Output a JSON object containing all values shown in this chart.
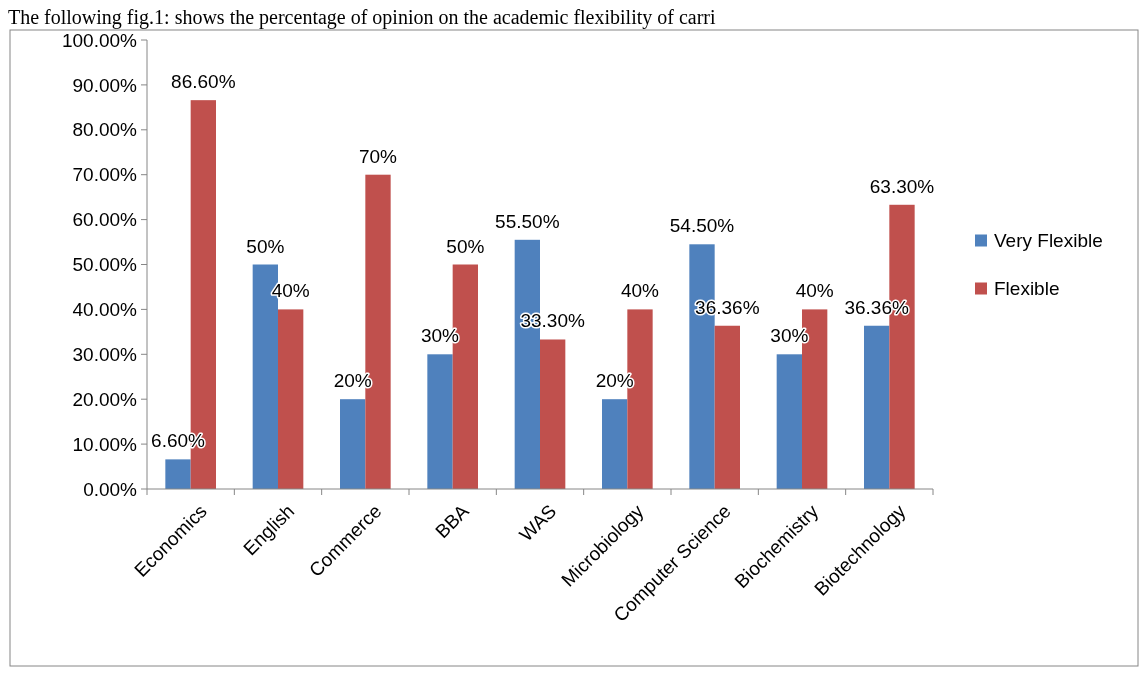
{
  "chart_data": {
    "type": "bar",
    "annotations": [
      "The following fig.1: shows the percentage of opinion on the academic flexibility of carri"
    ],
    "categories": [
      "Economics",
      "English",
      "Commerce",
      "BBA",
      "WAS",
      "Microbiology",
      "Computer Science",
      "Biochemistry",
      "Biotechnology"
    ],
    "series": [
      {
        "name": "Very Flexible",
        "color": "#4f81bd",
        "values": [
          6.6,
          50,
          20,
          30,
          55.5,
          20,
          54.5,
          30,
          36.36
        ],
        "value_labels": [
          "6.60%",
          "50%",
          "20%",
          "30%",
          "55.50%",
          "20%",
          "54.50%",
          "30%",
          "36.36%"
        ]
      },
      {
        "name": "Flexible",
        "color": "#c0504d",
        "values": [
          86.6,
          40,
          70,
          50,
          33.3,
          40,
          36.36,
          40,
          63.3
        ],
        "value_labels": [
          "86.60%",
          "40%",
          "70%",
          "50%",
          "33.30%",
          "40%",
          "36.36%",
          "40%",
          "63.30%"
        ]
      }
    ],
    "ylim": [
      0,
      100
    ],
    "yticks": [
      {
        "value": 0,
        "label": "0.00%"
      },
      {
        "value": 10,
        "label": "10.00%"
      },
      {
        "value": 20,
        "label": "20.00%"
      },
      {
        "value": 30,
        "label": "30.00%"
      },
      {
        "value": 40,
        "label": "40.00%"
      },
      {
        "value": 50,
        "label": "50.00%"
      },
      {
        "value": 60,
        "label": "60.00%"
      },
      {
        "value": 70,
        "label": "70.00%"
      },
      {
        "value": 80,
        "label": "80.00%"
      },
      {
        "value": 90,
        "label": "90.00%"
      },
      {
        "value": 100,
        "label": "100.00%"
      }
    ],
    "grid": false,
    "legend": "right"
  }
}
